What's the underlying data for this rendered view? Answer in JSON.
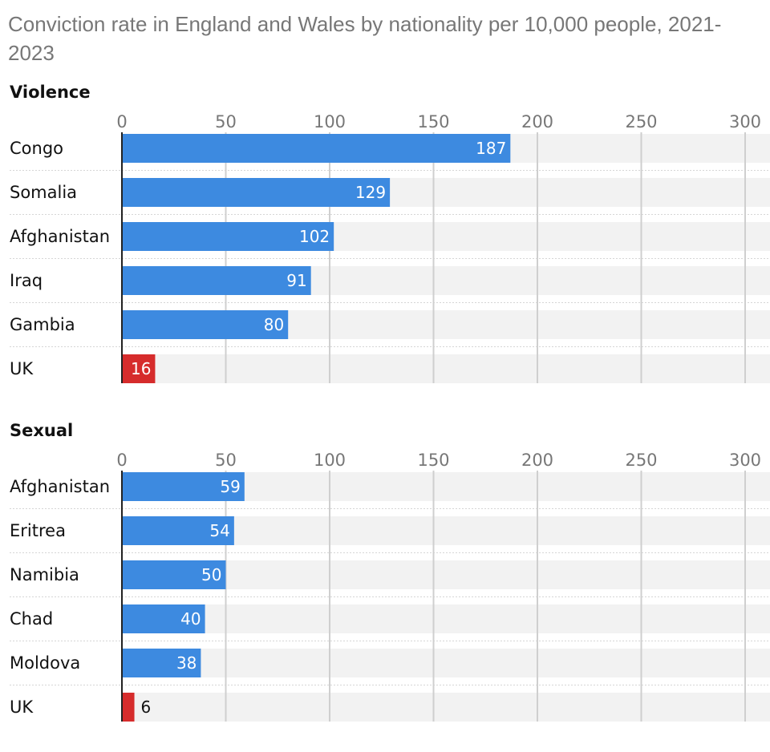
{
  "title": "Conviction rate in England and Wales by nationality per 10,000 people, 2021-2023",
  "colors": {
    "bar": "#3d8ae0",
    "highlight": "#d62c2c",
    "band": "#f2f2f2",
    "grid": "#cfcfcf"
  },
  "chart_data": [
    {
      "type": "bar",
      "orientation": "horizontal",
      "title": "Violence",
      "categories": [
        "Congo",
        "Somalia",
        "Afghanistan",
        "Iraq",
        "Gambia",
        "UK"
      ],
      "values": [
        187,
        129,
        102,
        91,
        80,
        16
      ],
      "highlight": [
        "UK"
      ],
      "ticks": [
        "0",
        "50",
        "100",
        "150",
        "200",
        "250",
        "300"
      ],
      "xlim": [
        0,
        310
      ],
      "grid": true,
      "axis_position": "top"
    },
    {
      "type": "bar",
      "orientation": "horizontal",
      "title": "Sexual",
      "categories": [
        "Afghanistan",
        "Eritrea",
        "Namibia",
        "Chad",
        "Moldova",
        "UK"
      ],
      "values": [
        59,
        54,
        50,
        40,
        38,
        6
      ],
      "highlight": [
        "UK"
      ],
      "ticks": [
        "0",
        "50",
        "100",
        "150",
        "200",
        "250",
        "300"
      ],
      "xlim": [
        0,
        310
      ],
      "grid": true,
      "axis_position": "top"
    }
  ]
}
